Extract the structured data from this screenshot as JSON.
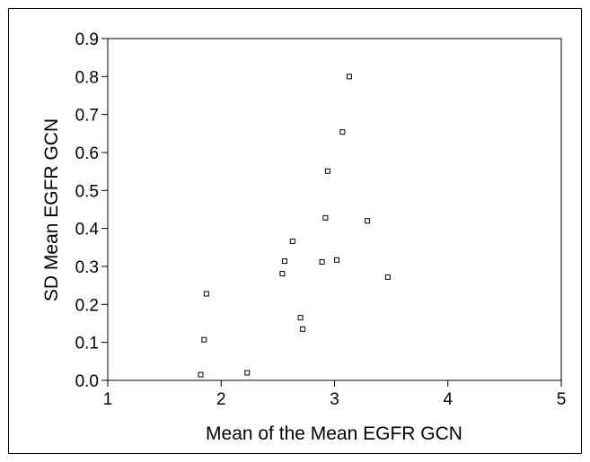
{
  "chart_data": {
    "type": "scatter",
    "xlabel": "Mean of the Mean EGFR GCN",
    "ylabel": "SD Mean EGFR GCN",
    "xlim": [
      1,
      5
    ],
    "ylim": [
      0,
      0.9
    ],
    "xticks": [
      "1",
      "2",
      "3",
      "4",
      "5"
    ],
    "yticks": [
      "0.0",
      "0.1",
      "0.2",
      "0.3",
      "0.4",
      "0.5",
      "0.6",
      "0.7",
      "0.8",
      "0.9"
    ],
    "grid": false,
    "marker": "open-square",
    "series": [
      {
        "points": [
          {
            "x": 1.82,
            "y": 0.015
          },
          {
            "x": 1.85,
            "y": 0.107
          },
          {
            "x": 1.87,
            "y": 0.228
          },
          {
            "x": 2.23,
            "y": 0.02
          },
          {
            "x": 2.54,
            "y": 0.281
          },
          {
            "x": 2.56,
            "y": 0.314
          },
          {
            "x": 2.63,
            "y": 0.366
          },
          {
            "x": 2.7,
            "y": 0.165
          },
          {
            "x": 2.72,
            "y": 0.135
          },
          {
            "x": 2.89,
            "y": 0.312
          },
          {
            "x": 2.92,
            "y": 0.428
          },
          {
            "x": 2.94,
            "y": 0.551
          },
          {
            "x": 3.02,
            "y": 0.317
          },
          {
            "x": 3.07,
            "y": 0.654
          },
          {
            "x": 3.13,
            "y": 0.8
          },
          {
            "x": 3.29,
            "y": 0.42
          },
          {
            "x": 3.47,
            "y": 0.272
          }
        ]
      }
    ]
  }
}
